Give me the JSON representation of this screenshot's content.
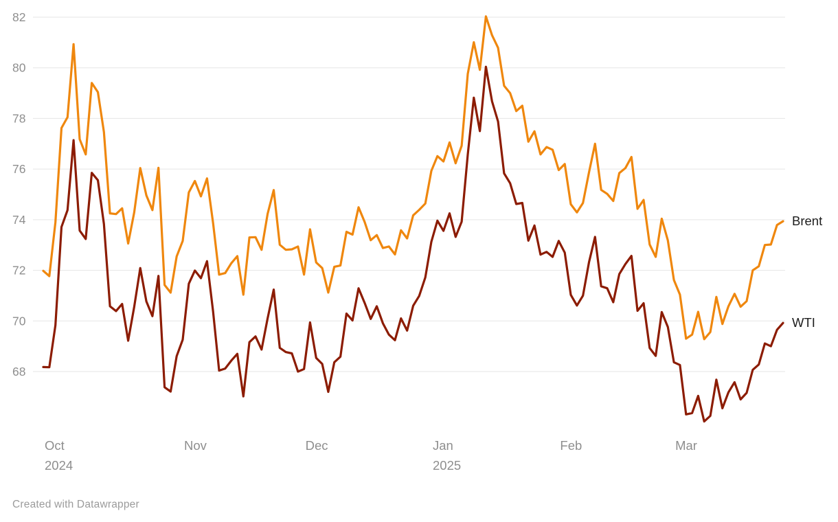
{
  "chart_data": {
    "type": "line",
    "grid": "horizontal",
    "legend_position": "line-end-labels",
    "x_axis": {
      "ticks": [
        {
          "label": "Oct",
          "sublabel": "2024",
          "index": 0
        },
        {
          "label": "Nov",
          "sublabel": "",
          "index": 23
        },
        {
          "label": "Dec",
          "sublabel": "",
          "index": 43
        },
        {
          "label": "Jan",
          "sublabel": "2025",
          "index": 64
        },
        {
          "label": "Feb",
          "sublabel": "",
          "index": 85
        },
        {
          "label": "Mar",
          "sublabel": "",
          "index": 104
        }
      ]
    },
    "y_axis": {
      "ticks": [
        68,
        70,
        72,
        74,
        76,
        78,
        80,
        82
      ],
      "range_shown": [
        68,
        82
      ]
    },
    "series": [
      {
        "name": "Brent",
        "color": "#ef870e",
        "values": [
          71.98,
          71.77,
          73.9,
          77.62,
          78.05,
          80.93,
          77.18,
          76.58,
          79.4,
          79.04,
          77.46,
          74.25,
          74.22,
          74.45,
          73.06,
          74.29,
          76.04,
          74.96,
          74.38,
          76.05,
          71.42,
          71.12,
          72.55,
          73.16,
          75.08,
          75.53,
          74.92,
          75.63,
          73.87,
          71.83,
          71.89,
          72.28,
          72.56,
          71.04,
          73.3,
          73.31,
          72.81,
          74.23,
          75.17,
          73.01,
          72.81,
          72.83,
          72.94,
          71.83,
          73.62,
          72.31,
          72.09,
          71.12,
          72.14,
          72.19,
          73.52,
          73.41,
          74.49,
          73.91,
          73.19,
          73.39,
          72.88,
          72.94,
          72.63,
          73.58,
          73.26,
          74.17,
          74.39,
          74.64,
          75.93,
          76.51,
          76.3,
          77.05,
          76.23,
          76.92,
          79.76,
          81.01,
          79.92,
          82.03,
          81.29,
          80.79,
          79.29,
          79.0,
          78.29,
          78.5,
          77.08,
          77.49,
          76.58,
          76.87,
          76.76,
          75.96,
          76.2,
          74.61,
          74.29,
          74.66,
          75.87,
          77.0,
          75.18,
          75.02,
          74.74,
          75.84,
          76.04,
          76.48,
          74.43,
          74.78,
          73.02,
          72.53,
          74.04,
          73.18,
          71.62,
          71.04,
          69.3,
          69.46,
          70.36,
          69.28,
          69.56,
          70.95,
          69.88,
          70.58,
          71.07,
          70.56,
          70.78,
          72.0,
          72.16,
          73.0,
          73.02,
          73.79,
          73.94
        ]
      },
      {
        "name": "WTI",
        "color": "#8c1c03",
        "values": [
          68.18,
          68.17,
          69.83,
          73.71,
          74.38,
          77.14,
          73.57,
          73.24,
          75.85,
          75.56,
          73.83,
          70.58,
          70.39,
          70.67,
          69.22,
          70.56,
          72.09,
          70.77,
          70.19,
          71.78,
          67.38,
          67.21,
          68.61,
          69.26,
          71.47,
          71.99,
          71.69,
          72.36,
          70.38,
          68.04,
          68.12,
          68.43,
          68.7,
          67.02,
          69.16,
          69.39,
          68.87,
          70.1,
          71.24,
          68.94,
          68.77,
          68.72,
          68.0,
          68.1,
          69.94,
          68.54,
          68.3,
          67.2,
          68.37,
          68.59,
          70.29,
          70.02,
          71.29,
          70.71,
          70.08,
          70.58,
          69.91,
          69.46,
          69.24,
          70.1,
          69.62,
          70.6,
          70.99,
          71.72,
          73.13,
          73.96,
          73.56,
          74.25,
          73.32,
          73.92,
          76.57,
          78.82,
          77.5,
          80.04,
          78.68,
          77.88,
          75.83,
          75.44,
          74.62,
          74.66,
          73.17,
          73.77,
          72.62,
          72.73,
          72.53,
          73.16,
          72.7,
          71.03,
          70.61,
          71.0,
          72.32,
          73.32,
          71.37,
          71.29,
          70.74,
          71.85,
          72.25,
          72.57,
          70.4,
          70.7,
          68.93,
          68.62,
          70.35,
          69.76,
          68.37,
          68.26,
          66.31,
          66.36,
          67.04,
          66.03,
          66.25,
          67.68,
          66.55,
          67.18,
          67.58,
          66.9,
          67.16,
          68.07,
          68.28,
          69.11,
          69.0,
          69.65,
          69.92
        ]
      }
    ]
  },
  "footer": {
    "credit": "Created with Datawrapper"
  },
  "styles": {
    "axis_text": "#8e8e8e",
    "grid_color": "#e5e5e5",
    "series_label_text": "#1d1d1d",
    "background": "#ffffff"
  }
}
